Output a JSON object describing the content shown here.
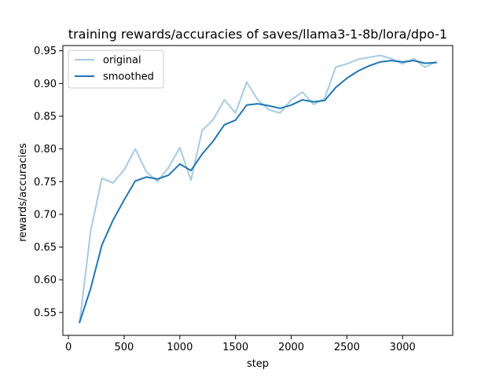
{
  "chart_data": {
    "type": "line",
    "title": "training rewards/accuracies of saves/llama3-1-8b/lora/dpo-1",
    "xlabel": "step",
    "ylabel": "rewards/accuracies",
    "xlim": [
      -50,
      3450
    ],
    "ylim": [
      0.515,
      0.958
    ],
    "xticks": [
      0,
      500,
      1000,
      1500,
      2000,
      2500,
      3000
    ],
    "xtick_labels": [
      "0",
      "500",
      "1000",
      "1500",
      "2000",
      "2500",
      "3000"
    ],
    "yticks": [
      0.55,
      0.6,
      0.65,
      0.7,
      0.75,
      0.8,
      0.85,
      0.9,
      0.95
    ],
    "ytick_labels": [
      "0.55",
      "0.60",
      "0.65",
      "0.70",
      "0.75",
      "0.80",
      "0.85",
      "0.90",
      "0.95"
    ],
    "grid": false,
    "legend_position": "top-left",
    "x": [
      100,
      200,
      300,
      400,
      500,
      600,
      700,
      800,
      900,
      1000,
      1100,
      1200,
      1300,
      1400,
      1500,
      1600,
      1700,
      1800,
      1900,
      2000,
      2100,
      2200,
      2300,
      2400,
      2500,
      2600,
      2700,
      2800,
      2900,
      3000,
      3100,
      3200,
      3300
    ],
    "series": [
      {
        "name": "original",
        "color": "#a6cbe3",
        "values": [
          0.535,
          0.675,
          0.755,
          0.748,
          0.768,
          0.8,
          0.765,
          0.75,
          0.772,
          0.802,
          0.752,
          0.828,
          0.845,
          0.875,
          0.855,
          0.902,
          0.875,
          0.86,
          0.855,
          0.875,
          0.887,
          0.868,
          0.877,
          0.925,
          0.93,
          0.937,
          0.94,
          0.943,
          0.938,
          0.93,
          0.938,
          0.925,
          0.933
        ]
      },
      {
        "name": "smoothed",
        "color": "#1f77b4",
        "values": [
          0.535,
          0.587,
          0.653,
          0.691,
          0.722,
          0.751,
          0.757,
          0.754,
          0.76,
          0.777,
          0.767,
          0.792,
          0.812,
          0.837,
          0.844,
          0.867,
          0.869,
          0.866,
          0.862,
          0.867,
          0.875,
          0.872,
          0.874,
          0.894,
          0.908,
          0.919,
          0.927,
          0.933,
          0.935,
          0.933,
          0.935,
          0.931,
          0.932
        ]
      }
    ]
  }
}
